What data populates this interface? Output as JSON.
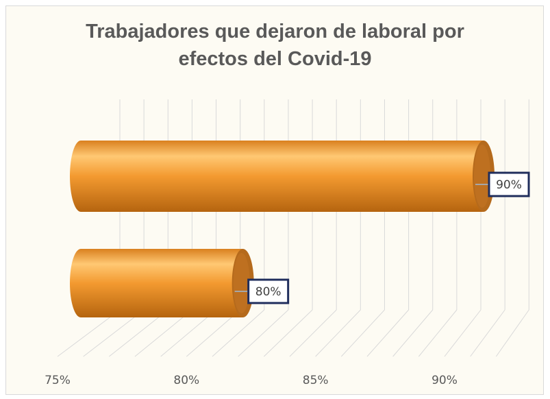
{
  "chart_data": {
    "type": "bar",
    "orientation": "horizontal",
    "style": "3d-cylinder",
    "title": "Trabajadores que dejaron de laboral por efectos del Covid-19",
    "title_lines": [
      "Trabajadores que dejaron de laboral por",
      "efectos del Covid-19"
    ],
    "series": [
      {
        "values": [
          90,
          80
        ]
      }
    ],
    "data_labels": [
      "90%",
      "80%"
    ],
    "xlim": [
      75,
      90
    ],
    "x_ticks": [
      75,
      80,
      85,
      90
    ],
    "x_tick_labels": [
      "75%",
      "80%",
      "85%",
      "90%"
    ],
    "grid": true,
    "legend": "none",
    "colors": {
      "bar": "#f0962a",
      "bar_light": "#ffc873",
      "bar_dark": "#c06a12",
      "cap": "#b56a1c",
      "label_border": "#1f2d5c",
      "grid": "#d9d9d9"
    }
  }
}
